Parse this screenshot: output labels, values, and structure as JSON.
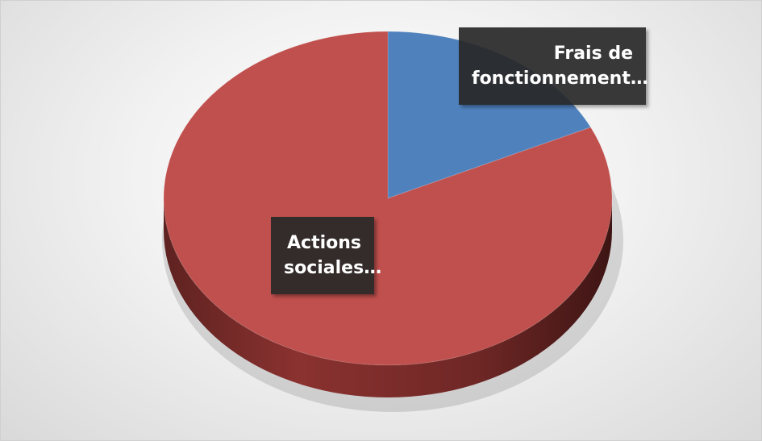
{
  "chart_data": {
    "type": "pie3d",
    "categories": [
      "Frais de fonctionnement…",
      "Actions sociales…"
    ],
    "values": [
      18,
      82
    ],
    "colors": [
      "#4f81bd",
      "#c0504d"
    ]
  }
}
